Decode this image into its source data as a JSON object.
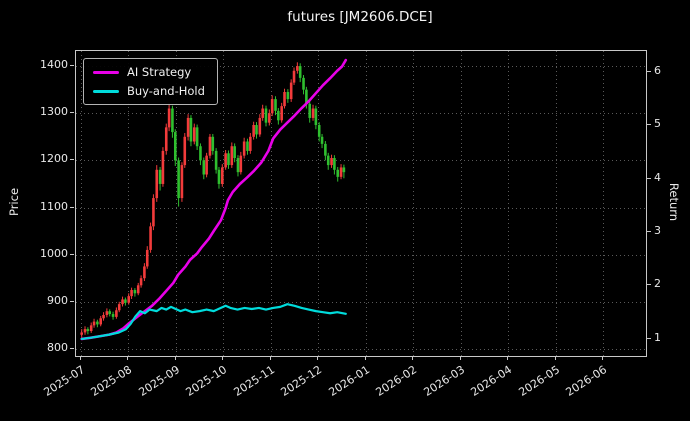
{
  "chart_data": {
    "type": "candlestick",
    "title": "futures [JM2606.DCE]",
    "ylabel_left": "Price",
    "ylabel_right": "Return",
    "x_tick_labels": [
      "2025-07",
      "2025-08",
      "2025-09",
      "2025-10",
      "2025-11",
      "2025-12",
      "2026-01",
      "2026-02",
      "2026-03",
      "2026-04",
      "2026-05",
      "2026-06"
    ],
    "price_ticks": [
      800,
      900,
      1000,
      1100,
      1200,
      1300,
      1400
    ],
    "return_ticks": [
      1,
      2,
      3,
      4,
      5,
      6
    ],
    "price_range": [
      785,
      1432
    ],
    "return_range": [
      0.68,
      6.39
    ],
    "x_range_months": [
      -0.1,
      11.9
    ],
    "grid_color": "#5a5a5a",
    "candle_up_color": "#f23b3b",
    "candle_down_color": "#2fbf2f",
    "candles": [
      [
        0.02,
        830,
        842,
        824,
        835
      ],
      [
        0.09,
        835,
        848,
        830,
        842
      ],
      [
        0.15,
        842,
        846,
        831,
        838
      ],
      [
        0.22,
        838,
        856,
        834,
        850
      ],
      [
        0.28,
        850,
        864,
        845,
        858
      ],
      [
        0.35,
        858,
        862,
        846,
        852
      ],
      [
        0.42,
        852,
        870,
        848,
        865
      ],
      [
        0.48,
        865,
        878,
        860,
        872
      ],
      [
        0.55,
        872,
        886,
        867,
        880
      ],
      [
        0.61,
        880,
        884,
        869,
        874
      ],
      [
        0.68,
        874,
        879,
        862,
        868
      ],
      [
        0.75,
        868,
        888,
        864,
        882
      ],
      [
        0.81,
        882,
        900,
        878,
        895
      ],
      [
        0.88,
        895,
        911,
        890,
        905
      ],
      [
        0.94,
        905,
        909,
        892,
        898
      ],
      [
        1.01,
        898,
        918,
        894,
        912
      ],
      [
        1.07,
        912,
        930,
        906,
        925
      ],
      [
        1.14,
        925,
        929,
        911,
        918
      ],
      [
        1.21,
        918,
        940,
        914,
        935
      ],
      [
        1.27,
        935,
        956,
        930,
        950
      ],
      [
        1.34,
        950,
        982,
        944,
        975
      ],
      [
        1.4,
        975,
        1018,
        970,
        1010
      ],
      [
        1.47,
        1010,
        1068,
        1004,
        1060
      ],
      [
        1.53,
        1060,
        1128,
        1052,
        1120
      ],
      [
        1.6,
        1120,
        1190,
        1112,
        1180
      ],
      [
        1.67,
        1180,
        1186,
        1136,
        1150
      ],
      [
        1.73,
        1150,
        1228,
        1144,
        1220
      ],
      [
        1.8,
        1220,
        1278,
        1212,
        1270
      ],
      [
        1.86,
        1270,
        1322,
        1262,
        1310
      ],
      [
        1.93,
        1310,
        1316,
        1248,
        1260
      ],
      [
        1.99,
        1260,
        1266,
        1188,
        1200
      ],
      [
        2.06,
        1200,
        1206,
        1102,
        1120
      ],
      [
        2.13,
        1120,
        1196,
        1112,
        1190
      ],
      [
        2.19,
        1190,
        1258,
        1184,
        1250
      ],
      [
        2.26,
        1250,
        1298,
        1242,
        1290
      ],
      [
        2.32,
        1290,
        1296,
        1230,
        1240
      ],
      [
        2.39,
        1240,
        1278,
        1234,
        1270
      ],
      [
        2.45,
        1270,
        1276,
        1222,
        1230
      ],
      [
        2.52,
        1230,
        1236,
        1190,
        1200
      ],
      [
        2.59,
        1200,
        1206,
        1160,
        1170
      ],
      [
        2.65,
        1170,
        1216,
        1164,
        1210
      ],
      [
        2.72,
        1210,
        1256,
        1204,
        1250
      ],
      [
        2.78,
        1250,
        1256,
        1212,
        1220
      ],
      [
        2.85,
        1220,
        1226,
        1172,
        1180
      ],
      [
        2.91,
        1180,
        1186,
        1140,
        1150
      ],
      [
        2.98,
        1150,
        1192,
        1144,
        1185
      ],
      [
        3.05,
        1185,
        1222,
        1180,
        1215
      ],
      [
        3.11,
        1215,
        1221,
        1182,
        1190
      ],
      [
        3.18,
        1190,
        1238,
        1184,
        1230
      ],
      [
        3.24,
        1230,
        1236,
        1196,
        1205
      ],
      [
        3.31,
        1205,
        1211,
        1166,
        1175
      ],
      [
        3.37,
        1175,
        1218,
        1170,
        1210
      ],
      [
        3.44,
        1210,
        1248,
        1204,
        1240
      ],
      [
        3.51,
        1240,
        1246,
        1212,
        1220
      ],
      [
        3.57,
        1220,
        1258,
        1214,
        1250
      ],
      [
        3.64,
        1250,
        1282,
        1244,
        1275
      ],
      [
        3.7,
        1275,
        1281,
        1246,
        1255
      ],
      [
        3.77,
        1255,
        1298,
        1250,
        1290
      ],
      [
        3.83,
        1290,
        1318,
        1284,
        1310
      ],
      [
        3.9,
        1310,
        1316,
        1272,
        1280
      ],
      [
        3.97,
        1280,
        1308,
        1274,
        1300
      ],
      [
        4.03,
        1300,
        1338,
        1294,
        1330
      ],
      [
        4.1,
        1330,
        1336,
        1296,
        1305
      ],
      [
        4.16,
        1305,
        1311,
        1276,
        1285
      ],
      [
        4.23,
        1285,
        1322,
        1280,
        1315
      ],
      [
        4.29,
        1315,
        1352,
        1310,
        1345
      ],
      [
        4.36,
        1345,
        1351,
        1322,
        1330
      ],
      [
        4.43,
        1330,
        1372,
        1324,
        1365
      ],
      [
        4.49,
        1365,
        1397,
        1360,
        1390
      ],
      [
        4.56,
        1390,
        1408,
        1384,
        1400
      ],
      [
        4.62,
        1400,
        1406,
        1366,
        1375
      ],
      [
        4.69,
        1375,
        1381,
        1340,
        1350
      ],
      [
        4.75,
        1350,
        1356,
        1310,
        1320
      ],
      [
        4.82,
        1320,
        1326,
        1280,
        1290
      ],
      [
        4.89,
        1290,
        1318,
        1284,
        1310
      ],
      [
        4.95,
        1310,
        1316,
        1266,
        1275
      ],
      [
        5.02,
        1275,
        1281,
        1240,
        1250
      ],
      [
        5.08,
        1250,
        1256,
        1226,
        1235
      ],
      [
        5.15,
        1235,
        1241,
        1200,
        1210
      ],
      [
        5.21,
        1210,
        1216,
        1180,
        1190
      ],
      [
        5.28,
        1190,
        1212,
        1184,
        1205
      ],
      [
        5.34,
        1205,
        1211,
        1170,
        1180
      ],
      [
        5.41,
        1180,
        1186,
        1155,
        1165
      ],
      [
        5.48,
        1165,
        1192,
        1160,
        1185
      ],
      [
        5.54,
        1185,
        1191,
        1162,
        1175
      ]
    ],
    "series": [
      {
        "name": "AI Strategy",
        "axis": "return",
        "color": "#e800e8",
        "width": 2.6,
        "points": [
          [
            0.02,
            1.0
          ],
          [
            0.2,
            1.02
          ],
          [
            0.4,
            1.05
          ],
          [
            0.6,
            1.08
          ],
          [
            0.75,
            1.12
          ],
          [
            0.9,
            1.2
          ],
          [
            1.0,
            1.28
          ],
          [
            1.1,
            1.35
          ],
          [
            1.2,
            1.42
          ],
          [
            1.35,
            1.52
          ],
          [
            1.5,
            1.62
          ],
          [
            1.65,
            1.75
          ],
          [
            1.8,
            1.9
          ],
          [
            1.95,
            2.05
          ],
          [
            2.05,
            2.2
          ],
          [
            2.2,
            2.35
          ],
          [
            2.3,
            2.48
          ],
          [
            2.45,
            2.6
          ],
          [
            2.55,
            2.72
          ],
          [
            2.7,
            2.88
          ],
          [
            2.8,
            3.02
          ],
          [
            2.95,
            3.22
          ],
          [
            3.05,
            3.45
          ],
          [
            3.1,
            3.6
          ],
          [
            3.2,
            3.75
          ],
          [
            3.35,
            3.9
          ],
          [
            3.5,
            4.02
          ],
          [
            3.65,
            4.15
          ],
          [
            3.8,
            4.3
          ],
          [
            3.95,
            4.52
          ],
          [
            4.05,
            4.75
          ],
          [
            4.2,
            4.92
          ],
          [
            4.35,
            5.05
          ],
          [
            4.5,
            5.18
          ],
          [
            4.65,
            5.32
          ],
          [
            4.8,
            5.45
          ],
          [
            4.95,
            5.6
          ],
          [
            5.1,
            5.75
          ],
          [
            5.25,
            5.88
          ],
          [
            5.4,
            6.02
          ],
          [
            5.5,
            6.1
          ],
          [
            5.58,
            6.22
          ]
        ]
      },
      {
        "name": "Buy-and-Hold",
        "axis": "return",
        "color": "#00dcdc",
        "width": 2.2,
        "points": [
          [
            0.02,
            1.0
          ],
          [
            0.2,
            1.02
          ],
          [
            0.4,
            1.05
          ],
          [
            0.6,
            1.08
          ],
          [
            0.8,
            1.12
          ],
          [
            0.95,
            1.18
          ],
          [
            1.05,
            1.28
          ],
          [
            1.15,
            1.42
          ],
          [
            1.25,
            1.52
          ],
          [
            1.35,
            1.48
          ],
          [
            1.45,
            1.55
          ],
          [
            1.6,
            1.52
          ],
          [
            1.7,
            1.58
          ],
          [
            1.8,
            1.55
          ],
          [
            1.9,
            1.6
          ],
          [
            2.0,
            1.56
          ],
          [
            2.1,
            1.52
          ],
          [
            2.2,
            1.55
          ],
          [
            2.35,
            1.5
          ],
          [
            2.5,
            1.52
          ],
          [
            2.65,
            1.55
          ],
          [
            2.8,
            1.52
          ],
          [
            2.95,
            1.58
          ],
          [
            3.05,
            1.62
          ],
          [
            3.15,
            1.58
          ],
          [
            3.3,
            1.55
          ],
          [
            3.45,
            1.58
          ],
          [
            3.6,
            1.56
          ],
          [
            3.75,
            1.58
          ],
          [
            3.9,
            1.55
          ],
          [
            4.05,
            1.58
          ],
          [
            4.2,
            1.6
          ],
          [
            4.35,
            1.65
          ],
          [
            4.5,
            1.62
          ],
          [
            4.65,
            1.58
          ],
          [
            4.8,
            1.55
          ],
          [
            4.95,
            1.52
          ],
          [
            5.1,
            1.5
          ],
          [
            5.25,
            1.48
          ],
          [
            5.4,
            1.5
          ],
          [
            5.58,
            1.47
          ]
        ]
      }
    ]
  }
}
